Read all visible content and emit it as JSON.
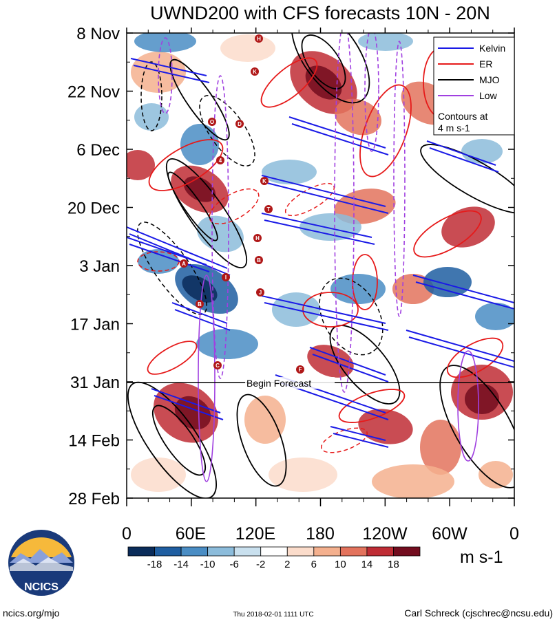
{
  "chart_data": {
    "type": "heatmap",
    "title": "UWND200 with CFS forecasts  10N - 20N",
    "y_tick_labels": [
      "8 Nov",
      "22 Nov",
      "6 Dec",
      "20 Dec",
      "3 Jan",
      "17 Jan",
      "31 Jan",
      "14 Feb",
      "28 Feb"
    ],
    "x_tick_labels": [
      "0",
      "60E",
      "120E",
      "180",
      "120W",
      "60W",
      "0"
    ],
    "xlim_deg_east": [
      0,
      360
    ],
    "colorbar": {
      "tick_labels": [
        "-18",
        "-14",
        "-10",
        "-6",
        "-2",
        "2",
        "6",
        "10",
        "14",
        "18"
      ],
      "units": "m s-1",
      "colors": [
        "#0a2c5a",
        "#1f5ea1",
        "#4a8dc4",
        "#8cbcdb",
        "#c9e0ee",
        "#ffffff",
        "#fbdccb",
        "#f4b08e",
        "#e3735d",
        "#bf2d35",
        "#730d1f"
      ]
    },
    "legend": [
      {
        "label": "Kelvin",
        "color": "#1a1ae6"
      },
      {
        "label": "ER",
        "color": "#e61a1a"
      },
      {
        "label": "MJO",
        "color": "#000000"
      },
      {
        "label": "Low",
        "color": "#a040e0"
      }
    ],
    "legend_note_line1": "Contours at",
    "legend_note_line2": "4 m s-1",
    "forecast_start_label": "Begin Forecast",
    "forecast_start_date": "31 Jan",
    "storm_markers": [
      "H",
      "K",
      "O",
      "D",
      "4",
      "K",
      "T",
      "H",
      "B",
      "A",
      "I",
      "J",
      "B",
      "C",
      "F"
    ]
  },
  "logo": {
    "text": "NCICS"
  },
  "footer": {
    "left": "ncics.org/mjo",
    "center": "Thu 2018-02-01 1111 UTC",
    "right": "Carl Schreck (cjschrec@ncsu.edu)"
  }
}
